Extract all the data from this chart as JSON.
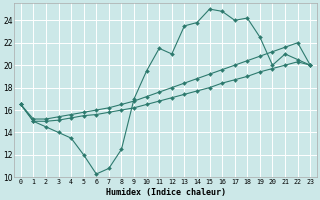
{
  "xlabel": "Humidex (Indice chaleur)",
  "bg_color": "#cce8e8",
  "line_color": "#2d7a6e",
  "grid_color": "#ffffff",
  "xlim": [
    -0.5,
    23.5
  ],
  "ylim": [
    10,
    25.5
  ],
  "xticks": [
    0,
    1,
    2,
    3,
    4,
    5,
    6,
    7,
    8,
    9,
    10,
    11,
    12,
    13,
    14,
    15,
    16,
    17,
    18,
    19,
    20,
    21,
    22,
    23
  ],
  "yticks": [
    10,
    12,
    14,
    16,
    18,
    20,
    22,
    24
  ],
  "series1_x": [
    0,
    1,
    2,
    3,
    4,
    5,
    6,
    7,
    8,
    9,
    10,
    11,
    12,
    13,
    14,
    15,
    16,
    17,
    18,
    19,
    20,
    21,
    22,
    23
  ],
  "series1_y": [
    16.5,
    15.0,
    14.5,
    14.0,
    13.5,
    12.0,
    10.3,
    10.8,
    12.5,
    17.0,
    19.5,
    21.5,
    21.0,
    23.5,
    23.8,
    25.0,
    24.8,
    24.0,
    24.2,
    22.5,
    20.0,
    21.0,
    20.5,
    20.0
  ],
  "series2_x": [
    0,
    1,
    2,
    3,
    4,
    5,
    6,
    7,
    8,
    9,
    10,
    11,
    12,
    13,
    14,
    15,
    16,
    17,
    18,
    19,
    20,
    21,
    22,
    23
  ],
  "series2_y": [
    16.5,
    15.2,
    15.2,
    15.4,
    15.6,
    15.8,
    16.0,
    16.2,
    16.5,
    16.8,
    17.2,
    17.6,
    18.0,
    18.4,
    18.8,
    19.2,
    19.6,
    20.0,
    20.4,
    20.8,
    21.2,
    21.6,
    22.0,
    20.0
  ],
  "series3_x": [
    0,
    1,
    2,
    3,
    4,
    5,
    6,
    7,
    8,
    9,
    10,
    11,
    12,
    13,
    14,
    15,
    16,
    17,
    18,
    19,
    20,
    21,
    22,
    23
  ],
  "series3_y": [
    16.5,
    15.0,
    15.0,
    15.1,
    15.3,
    15.5,
    15.6,
    15.8,
    16.0,
    16.2,
    16.5,
    16.8,
    17.1,
    17.4,
    17.7,
    18.0,
    18.4,
    18.7,
    19.0,
    19.4,
    19.7,
    20.0,
    20.3,
    20.0
  ]
}
